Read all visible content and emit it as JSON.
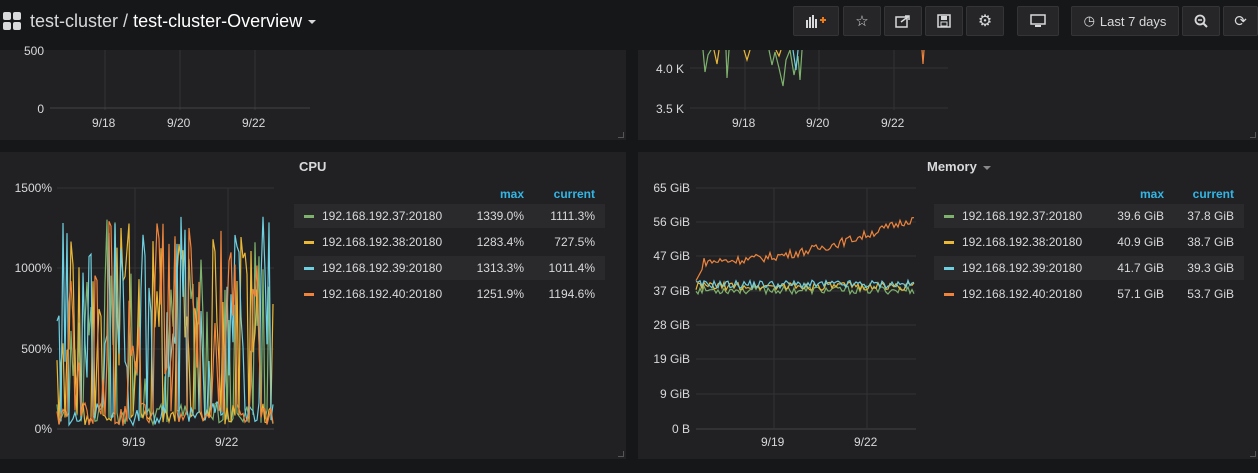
{
  "header": {
    "cluster": "test-cluster",
    "separator": "/",
    "dashboard": "test-cluster-Overview",
    "time_range": "Last 7 days",
    "icons": [
      "add-panel-icon",
      "star-icon",
      "share-icon",
      "save-icon",
      "gear-icon",
      "tv-icon",
      "clock-icon",
      "zoom-out-icon",
      "refresh-icon"
    ]
  },
  "top_left_panel": {
    "y_ticks": [
      "500",
      "0"
    ],
    "x_ticks": [
      "9/18",
      "9/20",
      "9/22"
    ]
  },
  "top_right_panel": {
    "y_ticks": [
      "4.0 K",
      "3.5 K"
    ],
    "x_ticks": [
      "9/18",
      "9/20",
      "9/22"
    ]
  },
  "cpu_panel": {
    "title": "CPU",
    "legend_max": "max",
    "legend_current": "current",
    "rows": [
      {
        "name": "192.168.192.37:20180",
        "max": "1339.0%",
        "current": "1111.3%",
        "color": "#7eb26d"
      },
      {
        "name": "192.168.192.38:20180",
        "max": "1283.4%",
        "current": "727.5%",
        "color": "#eab839"
      },
      {
        "name": "192.168.192.39:20180",
        "max": "1313.3%",
        "current": "1011.4%",
        "color": "#6ed0e0"
      },
      {
        "name": "192.168.192.40:20180",
        "max": "1251.9%",
        "current": "1194.6%",
        "color": "#ef843c"
      }
    ]
  },
  "memory_panel": {
    "title": "Memory",
    "legend_max": "max",
    "legend_current": "current",
    "rows": [
      {
        "name": "192.168.192.37:20180",
        "max": "39.6 GiB",
        "current": "37.8 GiB",
        "color": "#7eb26d"
      },
      {
        "name": "192.168.192.38:20180",
        "max": "40.9 GiB",
        "current": "38.7 GiB",
        "color": "#eab839"
      },
      {
        "name": "192.168.192.39:20180",
        "max": "41.7 GiB",
        "current": "39.3 GiB",
        "color": "#6ed0e0"
      },
      {
        "name": "192.168.192.40:20180",
        "max": "57.1 GiB",
        "current": "53.7 GiB",
        "color": "#ef843c"
      }
    ]
  },
  "chart_data": [
    {
      "type": "line",
      "y_ticks": [
        "1500%",
        "1000%",
        "500%",
        "0%"
      ],
      "x_ticks": [
        "9/19",
        "9/22"
      ],
      "ylim": [
        0,
        1500
      ],
      "series": [
        {
          "name": "192.168.192.37:20180",
          "color": "#7eb26d"
        },
        {
          "name": "192.168.192.38:20180",
          "color": "#eab839"
        },
        {
          "name": "192.168.192.39:20180",
          "color": "#6ed0e0"
        },
        {
          "name": "192.168.192.40:20180",
          "color": "#ef843c"
        }
      ]
    },
    {
      "type": "line",
      "y_ticks": [
        "65 GiB",
        "56 GiB",
        "47 GiB",
        "37 GiB",
        "28 GiB",
        "19 GiB",
        "9 GiB",
        "0 B"
      ],
      "x_ticks": [
        "9/19",
        "9/22"
      ],
      "ylim": [
        0,
        65
      ],
      "series": [
        {
          "name": "192.168.192.37:20180",
          "color": "#7eb26d"
        },
        {
          "name": "192.168.192.38:20180",
          "color": "#eab839"
        },
        {
          "name": "192.168.192.39:20180",
          "color": "#6ed0e0"
        },
        {
          "name": "192.168.192.40:20180",
          "color": "#ef843c"
        }
      ]
    }
  ]
}
